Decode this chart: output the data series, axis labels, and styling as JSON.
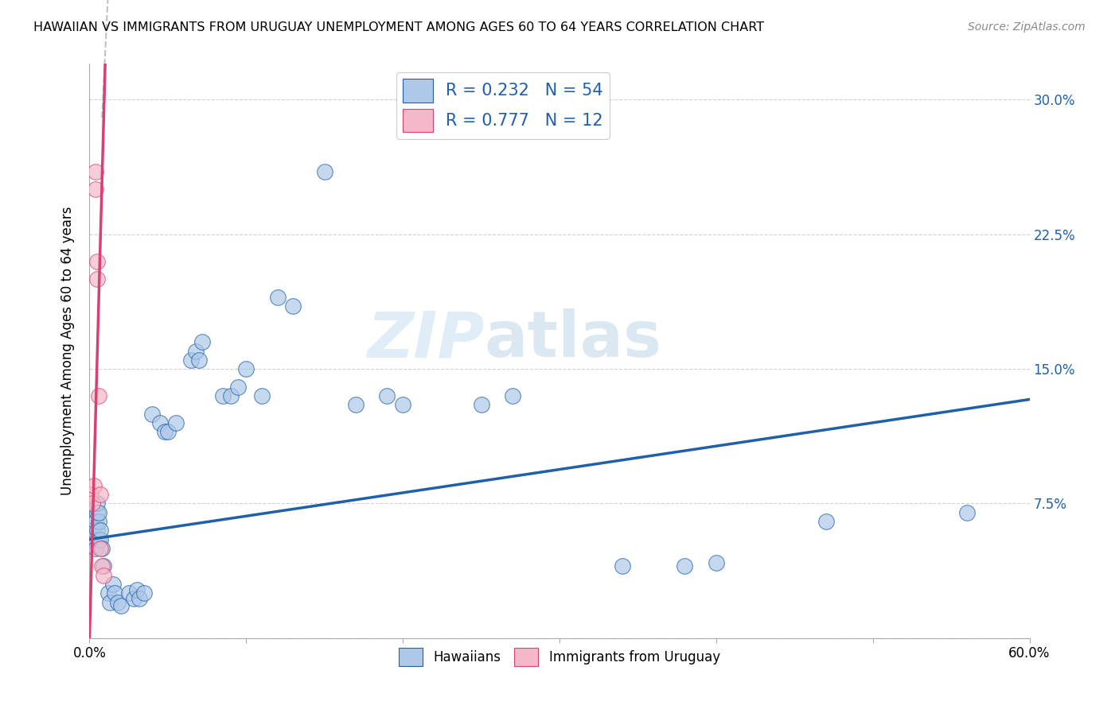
{
  "title": "HAWAIIAN VS IMMIGRANTS FROM URUGUAY UNEMPLOYMENT AMONG AGES 60 TO 64 YEARS CORRELATION CHART",
  "source": "Source: ZipAtlas.com",
  "ylabel": "Unemployment Among Ages 60 to 64 years",
  "xlim": [
    0.0,
    0.6
  ],
  "ylim": [
    0.0,
    0.32
  ],
  "xticks": [
    0.0,
    0.1,
    0.2,
    0.3,
    0.4,
    0.5,
    0.6
  ],
  "xticklabels_show": [
    "0.0%",
    "60.0%"
  ],
  "xticklabels_pos": [
    0.0,
    0.6
  ],
  "yticks": [
    0.0,
    0.075,
    0.15,
    0.225,
    0.3
  ],
  "yticklabels_right": [
    "",
    "7.5%",
    "15.0%",
    "22.5%",
    "30.0%"
  ],
  "legend_label1": "R = 0.232   N = 54",
  "legend_label2": "R = 0.777   N = 12",
  "legend_marker1": "Hawaiians",
  "legend_marker2": "Immigrants from Uruguay",
  "hawaiian_color": "#adc8e8",
  "uruguay_color": "#f5b8c8",
  "trend_color_hawaiian": "#2060a8",
  "trend_color_uruguay": "#d84070",
  "watermark_zip": "ZIP",
  "watermark_atlas": "atlas",
  "hawaiian_x": [
    0.001,
    0.002,
    0.003,
    0.003,
    0.004,
    0.004,
    0.005,
    0.005,
    0.005,
    0.006,
    0.006,
    0.006,
    0.007,
    0.007,
    0.008,
    0.009,
    0.012,
    0.013,
    0.015,
    0.016,
    0.018,
    0.02,
    0.025,
    0.028,
    0.03,
    0.032,
    0.035,
    0.04,
    0.045,
    0.048,
    0.05,
    0.055,
    0.065,
    0.068,
    0.07,
    0.072,
    0.085,
    0.09,
    0.095,
    0.1,
    0.11,
    0.12,
    0.13,
    0.15,
    0.17,
    0.19,
    0.2,
    0.25,
    0.27,
    0.34,
    0.38,
    0.4,
    0.47,
    0.56
  ],
  "hawaiian_y": [
    0.055,
    0.06,
    0.055,
    0.06,
    0.05,
    0.065,
    0.06,
    0.07,
    0.075,
    0.055,
    0.065,
    0.07,
    0.055,
    0.06,
    0.05,
    0.04,
    0.025,
    0.02,
    0.03,
    0.025,
    0.02,
    0.018,
    0.025,
    0.022,
    0.027,
    0.022,
    0.025,
    0.125,
    0.12,
    0.115,
    0.115,
    0.12,
    0.155,
    0.16,
    0.155,
    0.165,
    0.135,
    0.135,
    0.14,
    0.15,
    0.135,
    0.19,
    0.185,
    0.26,
    0.13,
    0.135,
    0.13,
    0.13,
    0.135,
    0.04,
    0.04,
    0.042,
    0.065,
    0.07
  ],
  "uruguay_x": [
    0.001,
    0.002,
    0.003,
    0.004,
    0.004,
    0.005,
    0.005,
    0.006,
    0.007,
    0.007,
    0.008,
    0.009
  ],
  "uruguay_y": [
    0.08,
    0.075,
    0.085,
    0.25,
    0.26,
    0.21,
    0.2,
    0.135,
    0.08,
    0.05,
    0.04,
    0.035
  ],
  "h_trend_x0": 0.0,
  "h_trend_y0": 0.055,
  "h_trend_x1": 0.6,
  "h_trend_y1": 0.133,
  "u_trend_x0": 0.0,
  "u_trend_y0": 0.0,
  "u_trend_x1": 0.01,
  "u_trend_y1": 0.32
}
